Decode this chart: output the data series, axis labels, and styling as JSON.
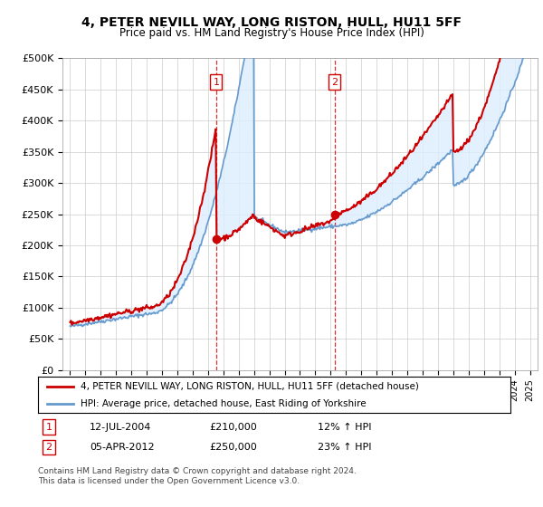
{
  "title": "4, PETER NEVILL WAY, LONG RISTON, HULL, HU11 5FF",
  "subtitle": "Price paid vs. HM Land Registry's House Price Index (HPI)",
  "legend_line1": "4, PETER NEVILL WAY, LONG RISTON, HULL, HU11 5FF (detached house)",
  "legend_line2": "HPI: Average price, detached house, East Riding of Yorkshire",
  "annotation1_label": "1",
  "annotation1_date": "12-JUL-2004",
  "annotation1_price": "£210,000",
  "annotation1_hpi": "12% ↑ HPI",
  "annotation2_label": "2",
  "annotation2_date": "05-APR-2012",
  "annotation2_price": "£250,000",
  "annotation2_hpi": "23% ↑ HPI",
  "footer": "Contains HM Land Registry data © Crown copyright and database right 2024.\nThis data is licensed under the Open Government Licence v3.0.",
  "sale1_year": 2004.53,
  "sale1_value": 210000,
  "sale2_year": 2012.26,
  "sale2_value": 250000,
  "red_color": "#cc0000",
  "blue_color": "#6699cc",
  "band_color": "#ddeeff",
  "vline_color": "#cc0000",
  "grid_color": "#cccccc",
  "background_color": "#ffffff",
  "ylim": [
    0,
    500000
  ],
  "yticks": [
    0,
    50000,
    100000,
    150000,
    200000,
    250000,
    300000,
    350000,
    400000,
    450000,
    500000
  ],
  "xlim_start": 1994.5,
  "xlim_end": 2025.5
}
